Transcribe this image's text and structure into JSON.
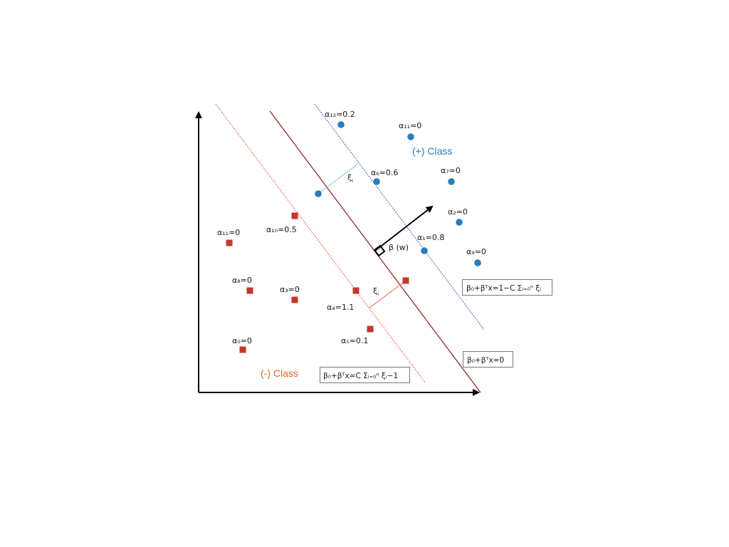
{
  "colors": {
    "positive": "#2a7db8",
    "negative": "#c0392b",
    "hyperplane": "#8b1a1a",
    "margin_neg_line": "#e85a3a",
    "margin_pos_line": "#3a5bbf",
    "slack_pos": "#9cc7ec",
    "slack_neg": "#f08070",
    "axis": "#000000"
  },
  "class_labels": {
    "positive": "(+) Class",
    "negative": "(-) Class"
  },
  "normal_label": "β (w)",
  "slack_label": "ξi",
  "equations": {
    "hyperplane": "β₀+βᵀx=0",
    "positive_margin": "β₀+βᵀx=1−C Σᵢ₌₀ⁿ ξᵢ",
    "negative_margin": "β₀+βᵀx=C Σᵢ₌₀ⁿ ξᵢ−1"
  },
  "positive_points": {
    "p12": "α₁₂=0.2",
    "p11": "α₁₁=0",
    "p6": "α₆=0.6",
    "p7": "α₇=0",
    "p2": "α₂=0",
    "p1": "α₁=0.8",
    "p9": "α₉=0"
  },
  "negative_points": {
    "n11": "α₁₁=0",
    "n10": "α₁₀=0.5",
    "n8": "α₈=0",
    "n3": "α₃=0",
    "n4": "α₄=1.1",
    "n5": "α₅=0.1",
    "n0": "α₀=0"
  }
}
